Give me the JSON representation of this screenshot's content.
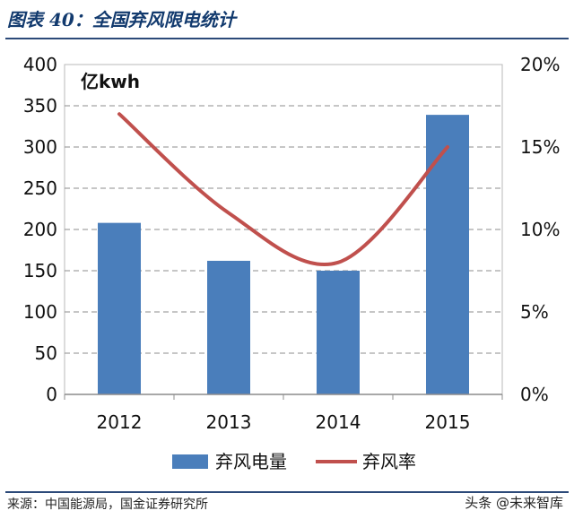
{
  "header": {
    "title": "图表 40：全国弃风限电统计"
  },
  "footer": {
    "source": "来源：中国能源局，国金证券研究所",
    "watermark": "头条 @未来智库"
  },
  "chart_data": {
    "type": "bar",
    "categories": [
      "2012",
      "2013",
      "2014",
      "2015"
    ],
    "unit_label": "亿kwh",
    "ylim": [
      0,
      400
    ],
    "y_ticks": [
      0,
      50,
      100,
      150,
      200,
      250,
      300,
      350,
      400
    ],
    "y2lim": [
      0,
      20
    ],
    "y2_ticks": [
      "0%",
      "5%",
      "10%",
      "15%",
      "20%"
    ],
    "grid": true,
    "legend_position": "bottom",
    "series": [
      {
        "name": "弃风电量",
        "type": "bar",
        "axis": "left",
        "values": [
          208,
          162,
          150,
          339
        ],
        "color": "#4a7ebb"
      },
      {
        "name": "弃风率",
        "type": "line",
        "axis": "right",
        "values": [
          17,
          11,
          8,
          15
        ],
        "color": "#c0504d"
      }
    ]
  }
}
